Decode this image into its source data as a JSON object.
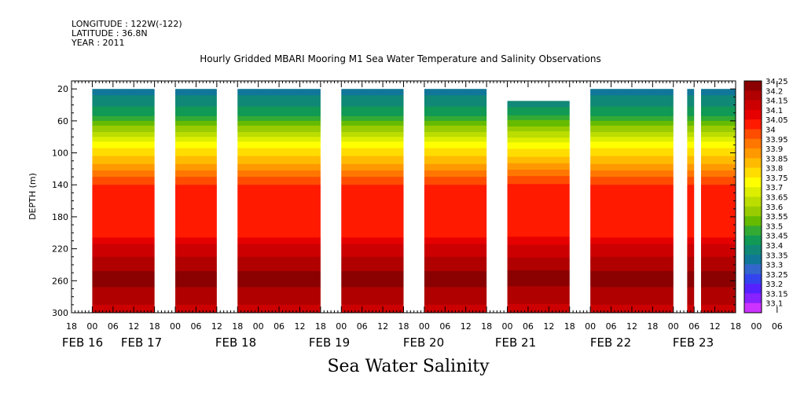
{
  "header": {
    "longitude": "LONGITUDE : 122W(-122)",
    "latitude": "LATITUDE : 36.8N",
    "year": "YEAR : 2011"
  },
  "title": "Hourly Gridded MBARI Mooring M1 Sea Water Temperature and Salinity Observations",
  "bottom_title": "Sea Water Salinity",
  "chart_data": {
    "type": "heatmap",
    "title": "Hourly Gridded MBARI Mooring M1 Sea Water Temperature and Salinity Observations",
    "variable": "Sea Water Salinity",
    "xlabel": "",
    "ylabel": "DEPTH (m)",
    "ylim": [
      300,
      10
    ],
    "y_ticks": [
      20,
      60,
      100,
      140,
      180,
      220,
      260,
      300
    ],
    "x_tick_hours": [
      "18",
      "00",
      "06",
      "12",
      "18",
      "00",
      "06",
      "12",
      "18",
      "00",
      "06",
      "12",
      "18",
      "00",
      "06",
      "12",
      "18",
      "00",
      "06",
      "12",
      "18",
      "00",
      "06",
      "12",
      "18",
      "00",
      "06",
      "12",
      "18",
      "00",
      "06",
      "12",
      "18",
      "00",
      "06",
      "12",
      "18"
    ],
    "x_day_labels": [
      "FEB 16",
      "FEB 17",
      "FEB 18",
      "FEB 19",
      "FEB 20",
      "FEB 21",
      "FEB 22",
      "FEB 23"
    ],
    "x_hours_range": [
      -6,
      186
    ],
    "data_segments_hours": [
      [
        0,
        18
      ],
      [
        24,
        36
      ],
      [
        42,
        66
      ],
      [
        72,
        90
      ],
      [
        96,
        114
      ],
      [
        120,
        138
      ],
      [
        144,
        168
      ],
      [
        172,
        174
      ],
      [
        176,
        186
      ]
    ],
    "segment_top_depth_m": [
      20,
      20,
      20,
      20,
      20,
      35,
      20,
      20,
      20
    ],
    "colorbar_levels": [
      "34.25",
      "34.2",
      "34.15",
      "34.1",
      "34.05",
      "34",
      "33.95",
      "33.9",
      "33.85",
      "33.8",
      "33.75",
      "33.7",
      "33.65",
      "33.6",
      "33.55",
      "33.5",
      "33.45",
      "33.4",
      "33.35",
      "33.3",
      "33.25",
      "33.2",
      "33.15",
      "33.1"
    ],
    "colorbar_colors": [
      "#8b0000",
      "#b00000",
      "#cc0000",
      "#e60000",
      "#ff1a00",
      "#ff4d00",
      "#ff7700",
      "#ff9900",
      "#ffbb00",
      "#ffdd00",
      "#ffff00",
      "#ddee00",
      "#bbdd00",
      "#99cc00",
      "#66bb00",
      "#33aa33",
      "#119955",
      "#118877",
      "#117799",
      "#3366cc",
      "#3344ee",
      "#5522ff",
      "#8822ff",
      "#cc33ff"
    ],
    "depth_profile": [
      {
        "depth": 20,
        "value": 33.35
      },
      {
        "depth": 50,
        "value": 33.45
      },
      {
        "depth": 70,
        "value": 33.6
      },
      {
        "depth": 90,
        "value": 33.75
      },
      {
        "depth": 110,
        "value": 33.85
      },
      {
        "depth": 125,
        "value": 33.95
      },
      {
        "depth": 145,
        "value": 34.05
      },
      {
        "depth": 200,
        "value": 34.05
      },
      {
        "depth": 220,
        "value": 34.15
      },
      {
        "depth": 240,
        "value": 34.2
      },
      {
        "depth": 255,
        "value": 34.25
      },
      {
        "depth": 280,
        "value": 34.2
      },
      {
        "depth": 300,
        "value": 34.15
      }
    ]
  }
}
